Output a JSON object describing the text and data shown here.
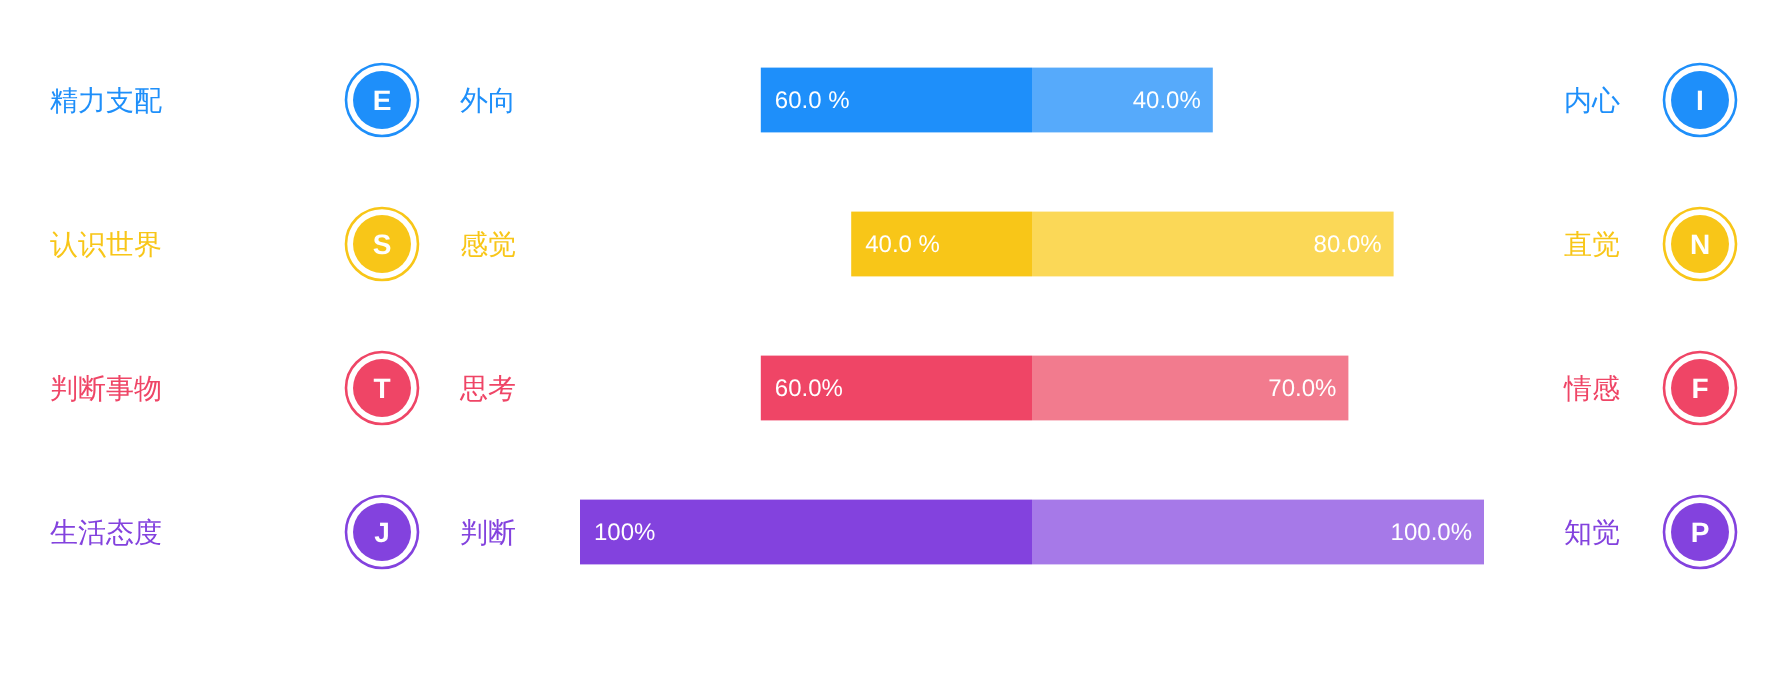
{
  "chart_data": [
    {
      "type": "bar",
      "orientation": "horizontal",
      "categories": [
        "精力支配",
        "认识世界",
        "判断事物",
        "生活态度"
      ],
      "series": [
        {
          "values": [
            60,
            40,
            60,
            100
          ],
          "colors": [
            "#1e8ffa",
            "#f8c618",
            "#ef4566",
            "#8342de"
          ],
          "value_labels": [
            "60.0 %",
            "40.0 %",
            "60.0%",
            "100%"
          ]
        }
      ],
      "xlim": [
        100,
        0
      ],
      "annotations": [
        "E",
        "外向",
        "S",
        "感觉",
        "T",
        "思考",
        "J",
        "判断"
      ]
    },
    {
      "type": "bar",
      "orientation": "horizontal",
      "categories": [
        null,
        null,
        null,
        null
      ],
      "series": [
        {
          "values": [
            40,
            80,
            70,
            100
          ],
          "colors": [
            "#56aafb",
            "#fbd857",
            "#f27b8e",
            "#a679e8"
          ],
          "value_labels": [
            "40.0%",
            "80.0%",
            "70.0%",
            "100.0%"
          ]
        }
      ],
      "xlim": [
        0,
        100
      ],
      "annotations": [
        "内心",
        "I",
        "直觉",
        "N",
        "情感",
        "F",
        "知觉",
        "P"
      ]
    }
  ]
}
